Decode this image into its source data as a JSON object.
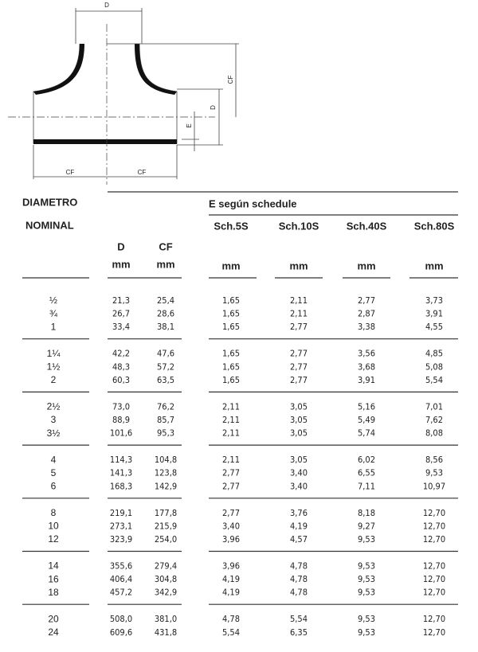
{
  "diagram": {
    "labels": [
      "D",
      "CF",
      "D",
      "E",
      "CF",
      "CF"
    ]
  },
  "table": {
    "headers": {
      "nominal": [
        "DIAMETRO",
        "NOMINAL"
      ],
      "d": "D",
      "cf": "CF",
      "schedule": "E según schedule",
      "schedules": [
        "Sch.5S",
        "Sch.10S",
        "Sch.40S",
        "Sch.80S"
      ],
      "units": [
        "mm",
        "mm",
        "mm",
        "mm",
        "mm",
        "mm"
      ]
    },
    "groups": [
      {
        "rows": [
          [
            "½",
            "21,3",
            "25,4",
            "1,65",
            "2,11",
            "2,77",
            "3,73"
          ],
          [
            "¾",
            "26,7",
            "28,6",
            "1,65",
            "2,11",
            "2,87",
            "3,91"
          ],
          [
            "1",
            "33,4",
            "38,1",
            "1,65",
            "2,77",
            "3,38",
            "4,55"
          ]
        ]
      },
      {
        "rows": [
          [
            "1¼",
            "42,2",
            "47,6",
            "1,65",
            "2,77",
            "3,56",
            "4,85"
          ],
          [
            "1½",
            "48,3",
            "57,2",
            "1,65",
            "2,77",
            "3,68",
            "5,08"
          ],
          [
            "2",
            "60,3",
            "63,5",
            "1,65",
            "2,77",
            "3,91",
            "5,54"
          ]
        ]
      },
      {
        "rows": [
          [
            "2½",
            "73,0",
            "76,2",
            "2,11",
            "3,05",
            "5,16",
            "7,01"
          ],
          [
            "3",
            "88,9",
            "85,7",
            "2,11",
            "3,05",
            "5,49",
            "7,62"
          ],
          [
            "3½",
            "101,6",
            "95,3",
            "2,11",
            "3,05",
            "5,74",
            "8,08"
          ]
        ]
      },
      {
        "rows": [
          [
            "4",
            "114,3",
            "104,8",
            "2,11",
            "3,05",
            "6,02",
            "8,56"
          ],
          [
            "5",
            "141,3",
            "123,8",
            "2,77",
            "3,40",
            "6,55",
            "9,53"
          ],
          [
            "6",
            "168,3",
            "142,9",
            "2,77",
            "3,40",
            "7,11",
            "10,97"
          ]
        ]
      },
      {
        "rows": [
          [
            "8",
            "219,1",
            "177,8",
            "2,77",
            "3,76",
            "8,18",
            "12,70"
          ],
          [
            "10",
            "273,1",
            "215,9",
            "3,40",
            "4,19",
            "9,27",
            "12,70"
          ],
          [
            "12",
            "323,9",
            "254,0",
            "3,96",
            "4,57",
            "9,53",
            "12,70"
          ]
        ]
      },
      {
        "rows": [
          [
            "14",
            "355,6",
            "279,4",
            "3,96",
            "4,78",
            "9,53",
            "12,70"
          ],
          [
            "16",
            "406,4",
            "304,8",
            "4,19",
            "4,78",
            "9,53",
            "12,70"
          ],
          [
            "18",
            "457,2",
            "342,9",
            "4,19",
            "4,78",
            "9,53",
            "12,70"
          ]
        ]
      },
      {
        "rows": [
          [
            "20",
            "508,0",
            "381,0",
            "4,78",
            "5,54",
            "9,53",
            "12,70"
          ],
          [
            "24",
            "609,6",
            "431,8",
            "5,54",
            "6,35",
            "9,53",
            "12,70"
          ]
        ]
      }
    ]
  }
}
